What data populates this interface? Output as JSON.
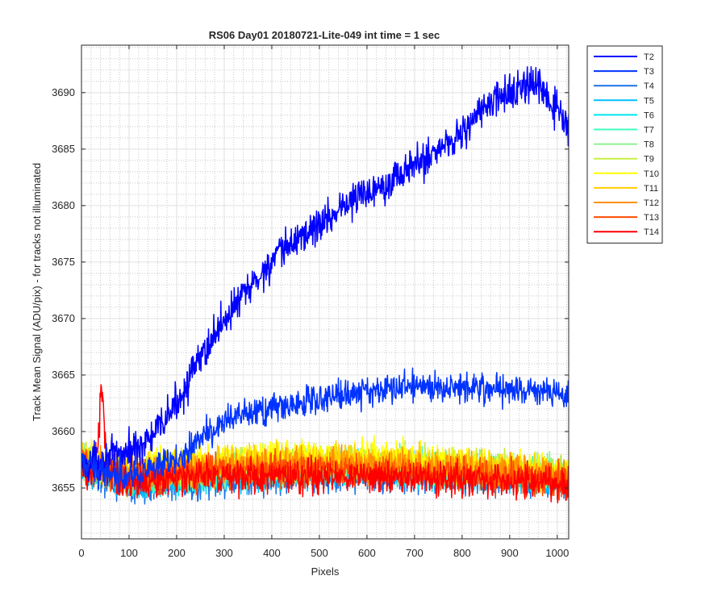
{
  "chart_data": {
    "type": "line",
    "title": "RS06 Day01 20180721-Lite-049 int time = 1 sec",
    "xlabel": "Pixels",
    "ylabel": "Track Mean Signal (ADU/pix) - for tracks not illuminated",
    "xlim": [
      0,
      1024
    ],
    "ylim": [
      3650.5,
      3694.2
    ],
    "x_ticks": [
      0,
      100,
      200,
      300,
      400,
      500,
      600,
      700,
      800,
      900,
      1000
    ],
    "y_ticks": [
      3655,
      3660,
      3665,
      3670,
      3675,
      3680,
      3685,
      3690
    ],
    "grid": "on (major + minor, dotted)",
    "legend_position": "outside top-right",
    "series": [
      {
        "name": "T2",
        "color": "#0000FF",
        "x": [
          0,
          50,
          100,
          150,
          200,
          250,
          300,
          350,
          400,
          450,
          500,
          550,
          600,
          650,
          700,
          750,
          800,
          850,
          900,
          950,
          1000,
          1024
        ],
        "y": [
          3657,
          3657.5,
          3658.2,
          3659.5,
          3662.5,
          3666.5,
          3670,
          3672.5,
          3675,
          3677,
          3678.3,
          3680,
          3681.2,
          3682.3,
          3683.5,
          3685,
          3686.5,
          3688.8,
          3690,
          3690.8,
          3688.5,
          3686.5
        ]
      },
      {
        "name": "T3",
        "color": "#0033FF",
        "x": [
          0,
          50,
          100,
          150,
          200,
          250,
          300,
          350,
          400,
          450,
          500,
          550,
          600,
          650,
          700,
          750,
          800,
          850,
          900,
          950,
          1000,
          1024
        ],
        "y": [
          3657,
          3656.5,
          3656.3,
          3656.5,
          3657.5,
          3659.5,
          3660.8,
          3661.5,
          3662,
          3662.4,
          3663,
          3663.3,
          3663.6,
          3663.8,
          3664,
          3664,
          3664,
          3663.9,
          3663.8,
          3663.6,
          3663.4,
          3663
        ]
      },
      {
        "name": "T4",
        "color": "#1A73E8",
        "x": [
          0,
          100,
          200,
          300,
          400,
          500,
          600,
          700,
          800,
          900,
          1000,
          1024
        ],
        "y": [
          3656.6,
          3655.1,
          3655.3,
          3655.6,
          3655.9,
          3656.0,
          3656.1,
          3656.0,
          3655.9,
          3655.8,
          3655.6,
          3655.5
        ]
      },
      {
        "name": "T5",
        "color": "#00BFFF",
        "x": [
          0,
          100,
          200,
          300,
          400,
          500,
          600,
          700,
          800,
          900,
          1000,
          1024
        ],
        "y": [
          3656.8,
          3655.4,
          3655.7,
          3656.0,
          3656.3,
          3656.4,
          3656.4,
          3656.3,
          3656.2,
          3656.0,
          3655.8,
          3655.7
        ]
      },
      {
        "name": "T6",
        "color": "#00E5EE",
        "x": [
          0,
          100,
          200,
          300,
          400,
          500,
          600,
          700,
          800,
          900,
          1000,
          1024
        ],
        "y": [
          3657.0,
          3655.6,
          3656.0,
          3656.3,
          3656.6,
          3656.7,
          3656.7,
          3656.6,
          3656.4,
          3656.2,
          3656.0,
          3655.9
        ]
      },
      {
        "name": "T7",
        "color": "#40FFC0",
        "x": [
          0,
          100,
          200,
          300,
          400,
          500,
          600,
          700,
          800,
          900,
          1000,
          1024
        ],
        "y": [
          3657.1,
          3655.8,
          3656.2,
          3656.5,
          3656.8,
          3656.9,
          3656.9,
          3656.8,
          3656.6,
          3656.4,
          3656.2,
          3656.1
        ]
      },
      {
        "name": "T8",
        "color": "#90F090",
        "x": [
          0,
          100,
          200,
          300,
          400,
          500,
          600,
          700,
          800,
          900,
          1000,
          1024
        ],
        "y": [
          3657.2,
          3656.0,
          3656.4,
          3656.7,
          3657.0,
          3657.1,
          3657.1,
          3657.0,
          3656.8,
          3656.6,
          3656.4,
          3656.3
        ]
      },
      {
        "name": "T9",
        "color": "#C8F040",
        "x": [
          0,
          100,
          200,
          300,
          400,
          500,
          600,
          700,
          800,
          900,
          1000,
          1024
        ],
        "y": [
          3657.3,
          3656.2,
          3656.6,
          3656.9,
          3657.2,
          3657.3,
          3657.3,
          3657.2,
          3657.0,
          3656.8,
          3656.6,
          3656.5
        ]
      },
      {
        "name": "T10",
        "color": "#FFFF00",
        "x": [
          0,
          100,
          200,
          300,
          400,
          500,
          600,
          700,
          800,
          900,
          1000,
          1024
        ],
        "y": [
          3657.5,
          3656.6,
          3657.1,
          3657.5,
          3657.7,
          3657.8,
          3657.7,
          3657.5,
          3657.2,
          3656.9,
          3656.6,
          3656.5
        ]
      },
      {
        "name": "T11",
        "color": "#FFD000",
        "x": [
          0,
          100,
          200,
          300,
          400,
          500,
          600,
          700,
          800,
          900,
          1000,
          1024
        ],
        "y": [
          3657.4,
          3656.4,
          3656.9,
          3657.2,
          3657.4,
          3657.5,
          3657.4,
          3657.2,
          3657.0,
          3656.7,
          3656.4,
          3656.3
        ]
      },
      {
        "name": "T12",
        "color": "#FF9000",
        "x": [
          0,
          100,
          200,
          300,
          400,
          500,
          600,
          700,
          800,
          900,
          1000,
          1024
        ],
        "y": [
          3657.2,
          3656.2,
          3656.7,
          3657.0,
          3657.1,
          3657.1,
          3657.0,
          3656.8,
          3656.6,
          3656.3,
          3656.0,
          3655.9
        ]
      },
      {
        "name": "T13",
        "color": "#FF4A00",
        "x": [
          0,
          100,
          200,
          300,
          400,
          500,
          600,
          700,
          800,
          900,
          1000,
          1024
        ],
        "y": [
          3657.0,
          3656.0,
          3656.3,
          3656.5,
          3656.6,
          3656.6,
          3656.5,
          3656.3,
          3656.1,
          3655.9,
          3655.6,
          3655.5
        ]
      },
      {
        "name": "T14",
        "color": "#FF0000",
        "x": [
          0,
          20,
          35,
          42,
          50,
          60,
          100,
          200,
          300,
          400,
          500,
          600,
          700,
          800,
          900,
          1000,
          1024
        ],
        "y": [
          3656.3,
          3656.5,
          3658.5,
          3664.5,
          3659.5,
          3656.0,
          3655.5,
          3655.8,
          3656.0,
          3656.1,
          3656.0,
          3656.0,
          3655.9,
          3655.8,
          3655.6,
          3655.4,
          3655.3
        ]
      }
    ]
  }
}
